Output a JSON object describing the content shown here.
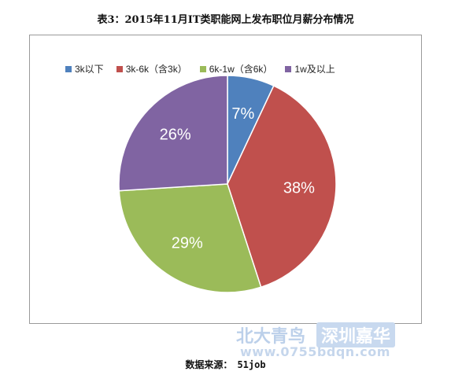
{
  "title": "表3：2015年11月IT类职能网上发布职位月薪分布情况",
  "source_label": "数据来源：",
  "source_value": "51job",
  "watermark": {
    "brand_left": "北大青鸟",
    "brand_right": "深圳嘉华",
    "url": "www.0755bdqn.com"
  },
  "chart_data": {
    "type": "pie",
    "title": "表3：2015年11月IT类职能网上发布职位月薪分布情况",
    "categories": [
      "3k以下",
      "3k-6k（含3k）",
      "6k-1w（含6k）",
      "1w及以上"
    ],
    "values": [
      7,
      38,
      29,
      26
    ],
    "value_labels": [
      "7%",
      "38%",
      "29%",
      "26%"
    ],
    "colors": [
      "#4f81bd",
      "#c0504d",
      "#9bbb59",
      "#8064a2"
    ],
    "legend_position": "top",
    "start_angle": "12 o'clock, clockwise"
  }
}
